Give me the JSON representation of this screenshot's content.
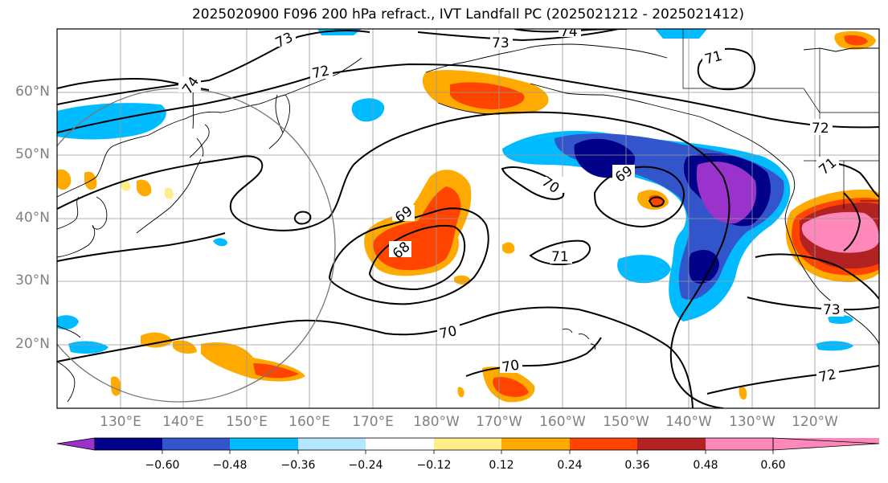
{
  "title": "2025020900 F096 200 hPa refract., IVT Landfall PC (2025021212 - 2025021412)",
  "lat_labels": [
    "20°N",
    "30°N",
    "40°N",
    "50°N",
    "60°N"
  ],
  "lon_labels": [
    "130°E",
    "140°E",
    "150°E",
    "160°E",
    "170°E",
    "180°W",
    "170°W",
    "160°W",
    "150°W",
    "140°W",
    "130°W",
    "120°W"
  ],
  "colorbar": {
    "labels": [
      "−0.60",
      "−0.48",
      "−0.36",
      "−0.24",
      "−0.12",
      "0.12",
      "0.24",
      "0.36",
      "0.48",
      "0.60"
    ],
    "colors": [
      "#9933cc",
      "#000088",
      "#3355cc",
      "#00bbff",
      "#b3e6ff",
      "#ffffff",
      "#ffee88",
      "#ffaa00",
      "#ff4400",
      "#b22222",
      "#ff88bb"
    ]
  },
  "contour_labels": [
    "73",
    "73",
    "74",
    "72",
    "74",
    "71",
    "72",
    "71",
    "70",
    "69",
    "69",
    "68",
    "71",
    "70",
    "70",
    "73",
    "72"
  ],
  "colors": {
    "neg_strong": "#9933cc",
    "neg_1": "#000088",
    "neg_2": "#3355cc",
    "neg_3": "#00bbff",
    "neg_4": "#b3e6ff",
    "pos_1": "#ffee88",
    "pos_2": "#ffaa00",
    "pos_3": "#ff4400",
    "pos_4": "#b22222",
    "pos_5": "#ff88bb"
  }
}
